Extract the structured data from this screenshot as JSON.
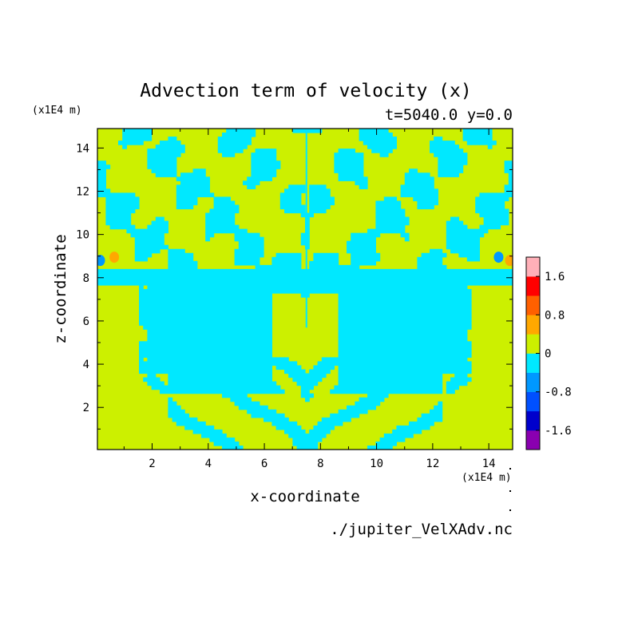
{
  "chart_data": {
    "type": "heatmap",
    "title": "Advection term of velocity (x)",
    "subtitle": "t=5040.0 y=0.0",
    "xlabel": "x-coordinate",
    "ylabel": "z-coordinate",
    "x_unit": "(x1E4 m)",
    "y_unit": "(x1E4 m)",
    "xlim": [
      0.05,
      14.85
    ],
    "ylim": [
      0.05,
      14.9
    ],
    "x_ticks": [
      2,
      4,
      6,
      8,
      10,
      12,
      14
    ],
    "y_ticks": [
      2,
      4,
      6,
      8,
      10,
      12,
      14
    ],
    "x_tick_labels": [
      "2",
      "4",
      "6",
      "8",
      "10",
      "12",
      "14"
    ],
    "y_tick_labels": [
      "2",
      "4",
      "6",
      "8",
      "10",
      "12",
      "14"
    ],
    "grid": false,
    "source_file": "./jupiter_VelXAdv.nc",
    "colorbar": {
      "position": "right",
      "levels": [
        {
          "range": [
            -2.0,
            -1.6
          ],
          "color": "#8a00b0"
        },
        {
          "range": [
            -1.6,
            -1.2
          ],
          "color": "#0000cc"
        },
        {
          "range": [
            -1.2,
            -0.8
          ],
          "color": "#0050ff"
        },
        {
          "range": [
            -0.8,
            -0.4
          ],
          "color": "#0098ff"
        },
        {
          "range": [
            -0.4,
            0.0
          ],
          "color": "#00e8ff"
        },
        {
          "range": [
            0.0,
            0.4
          ],
          "color": "#ccf000"
        },
        {
          "range": [
            0.4,
            0.8
          ],
          "color": "#ffa800"
        },
        {
          "range": [
            0.8,
            1.2
          ],
          "color": "#ff6000"
        },
        {
          "range": [
            1.2,
            1.6
          ],
          "color": "#ff0000"
        },
        {
          "range": [
            1.6,
            2.0
          ],
          "color": "#ffb0b8"
        }
      ],
      "tick_values": [
        1.6,
        0.8,
        0,
        -0.8,
        -1.6
      ],
      "tick_labels": [
        "1.6",
        "0.8",
        "0",
        "-0.8",
        "-1.6"
      ]
    },
    "field_summary": {
      "dominant_levels": [
        "0 to 0.4",
        "-0.4 to 0"
      ],
      "symmetry": "mirror-symmetric about x = 7.5",
      "extrema": [
        {
          "x": 0.65,
          "z": 8.95,
          "level": "0.4 to 0.8"
        },
        {
          "x": 14.35,
          "z": 8.95,
          "level": "-0.8 to -0.4"
        },
        {
          "x": 0.15,
          "z": 8.8,
          "level": "-0.8 to -0.4"
        },
        {
          "x": 14.75,
          "z": 8.8,
          "level": "0.4 to 0.8"
        }
      ]
    }
  },
  "colors": {
    "pos": "#ccf000",
    "neg": "#00e8ff"
  }
}
